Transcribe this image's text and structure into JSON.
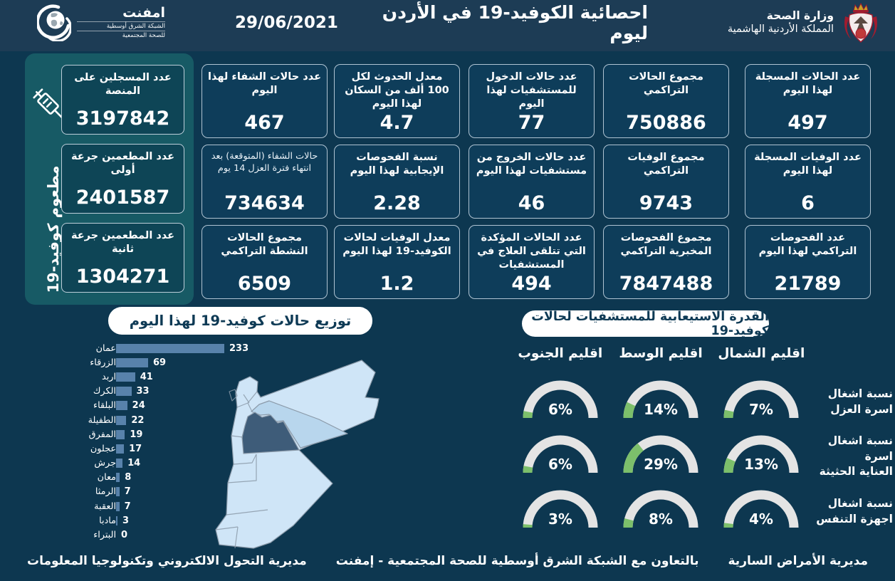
{
  "colors": {
    "header_bg": "#1d3c55",
    "body_bg": "#0d3750",
    "card_bg": "#0e3d5a",
    "card_border": "#cbdbe8",
    "teal_panel": "#175a65",
    "teal_card": "#0e4556",
    "bar_color": "#5882ab",
    "gauge_track": "#e4e4e4",
    "gauge_fill": "#7cbf6b",
    "map_base": "#cfe5f7",
    "map_amman": "#3e5c79",
    "map_zarqa": "#b8d6ed",
    "map_stroke": "#8b9aa9"
  },
  "header": {
    "title": "احصائية الكوفيد-19 في الأردن ليوم",
    "date": "29/06/2021",
    "emphnet": {
      "name": "امفنت",
      "line1": "الشبكة الشرق أوسطية",
      "line2": "للصحة المجتمعية"
    },
    "ministry": {
      "line1": "وزارة الصحة",
      "line2": "المملكة الأردنية الهاشمية"
    }
  },
  "vaccine_panel": {
    "vertical_label": "مطعوم كوفيد-19",
    "cards": [
      {
        "label": "عدد المسجلين على المنصة",
        "value": "3197842"
      },
      {
        "label": "عدد المطعمين جرعة أولى",
        "value": "2401587"
      },
      {
        "label": "عدد المطعمين جرعة ثانية",
        "value": "1304271"
      }
    ]
  },
  "stats": {
    "columns": [
      {
        "cards": [
          {
            "label": "عدد الحالات المسجلة لهذا اليوم",
            "value": "497"
          },
          {
            "label": "عدد الوفيات المسجلة لهذا اليوم",
            "value": "6"
          },
          {
            "label": "عدد الفحوصات التراكمي لهذا اليوم",
            "value": "21789"
          }
        ]
      },
      {
        "cards": [
          {
            "label": "مجموع الحالات التراكمي",
            "value": "750886"
          },
          {
            "label": "مجموع الوفيات التراكمي",
            "value": "9743"
          },
          {
            "label": "مجموع الفحوصات المخبرية التراكمي",
            "value": "7847488"
          }
        ]
      },
      {
        "cards": [
          {
            "label": "عدد حالات الدخول للمستشفيات لهذا اليوم",
            "value": "77"
          },
          {
            "label": "عدد حالات الخروج من مستشفيات لهذا اليوم",
            "value": "46"
          },
          {
            "label": "عدد الحالات المؤكدة التي تتلقى العلاج في المستشفيات",
            "value": "494"
          }
        ]
      },
      {
        "cards": [
          {
            "label": "معدل الحدوث لكل 100 ألف من السكان لهذا اليوم",
            "value": "4.7"
          },
          {
            "label": "نسبة الفحوصات الإيجابية لهذا اليوم",
            "value": "2.28"
          },
          {
            "label": "معدل الوفيات لحالات الكوفيد-19 لهذا اليوم",
            "value": "1.2"
          }
        ]
      },
      {
        "cards": [
          {
            "label": "عدد حالات الشفاء لهذا اليوم",
            "value": "467"
          },
          {
            "label": "حالات الشفاء (المتوقعة) بعد انتهاء فترة العزل 14 يوم",
            "value": "734634",
            "light": true
          },
          {
            "label": "مجموع الحالات النشطة التراكمي",
            "value": "6509"
          }
        ]
      }
    ]
  },
  "chart_data": [
    {
      "type": "bar",
      "orientation": "horizontal",
      "title": "توزيع حالات كوفيد-19 لهذا اليوم",
      "categories": [
        "عمان",
        "الزرقاء",
        "اربد",
        "الكرك",
        "البلقاء",
        "الطفيلة",
        "المفرق",
        "عجلون",
        "جرش",
        "معان",
        "الرمثا",
        "العقبة",
        "مادبا",
        "البتراء"
      ],
      "values": [
        233,
        69,
        41,
        33,
        24,
        22,
        19,
        17,
        14,
        8,
        7,
        7,
        3,
        0
      ],
      "xlim": [
        0,
        233
      ],
      "value_labels": true,
      "grid": false
    },
    {
      "type": "gauge",
      "title": "القدرة الاستيعابية للمستشفيات لحالات كوفيد-19",
      "unit": "%",
      "series": [
        {
          "name": "اقليم الشمال",
          "values": [
            7,
            13,
            4
          ]
        },
        {
          "name": "اقليم الوسط",
          "values": [
            14,
            29,
            8
          ]
        },
        {
          "name": "اقليم الجنوب",
          "values": [
            6,
            6,
            3
          ]
        }
      ],
      "metrics": [
        "نسبة اشغال اسرة العزل",
        "نسبة اشغال اسرة العناية الحثيثة",
        "نسبة اشغال اجهزة التنفس"
      ],
      "metrics_lines": [
        [
          "نسبة اشغال",
          "اسرة العزل"
        ],
        [
          "نسبة اشغال اسرة",
          "العناية الحثيثة"
        ],
        [
          "نسبة اشغال",
          "اجهزة التنفس"
        ]
      ],
      "range": [
        0,
        100
      ]
    }
  ],
  "map": {
    "country": "الأردن",
    "base_color": "#cfe5f7",
    "highlights": [
      {
        "region": "عمان",
        "color": "#3e5c79"
      },
      {
        "region": "الزرقاء",
        "color": "#b8d6ed"
      }
    ]
  },
  "footer": {
    "right": "مديرية الأمراض السارية",
    "center": "بالتعاون مع الشبكة الشرق أوسطية للصحة المجتمعية - إمفنت",
    "left": "مديرية التحول الالكتروني وتكنولوجيا المعلومات"
  }
}
